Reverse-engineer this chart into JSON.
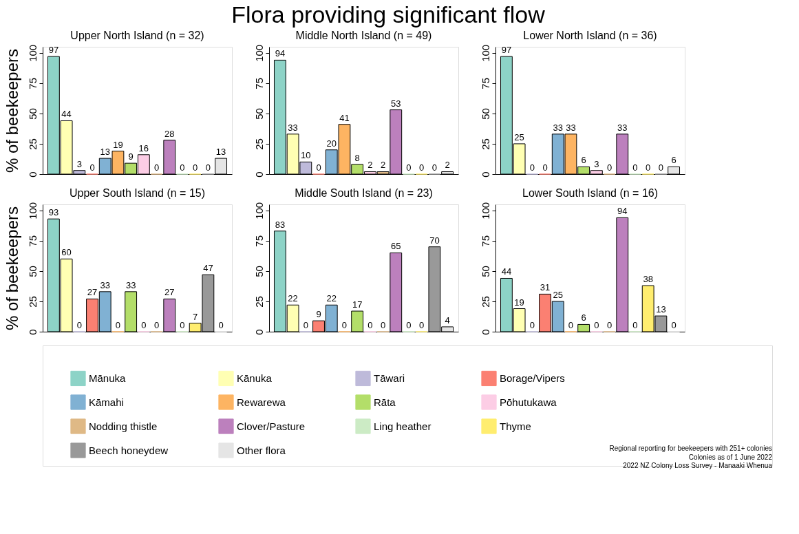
{
  "chart_data": [
    {
      "type": "bar",
      "title": "Upper North Island (n = 32)",
      "categories": [
        null
      ],
      "series": [
        {
          "name": "Mānuka",
          "color": "#8dd3c7",
          "values": [
            97
          ]
        },
        {
          "name": "Kānuka",
          "color": "#ffffb3",
          "values": [
            44
          ]
        },
        {
          "name": "Tāwari",
          "color": "#bebada",
          "values": [
            3
          ]
        },
        {
          "name": "Borage/Vipers",
          "color": "#fb8072",
          "values": [
            0
          ]
        },
        {
          "name": "Kāmahi",
          "color": "#80b1d3",
          "values": [
            13
          ]
        },
        {
          "name": "Rewarewa",
          "color": "#fdb462",
          "values": [
            19
          ]
        },
        {
          "name": "Rāta",
          "color": "#b3de69",
          "values": [
            9
          ]
        },
        {
          "name": "Pōhutukawa",
          "color": "#fccde5",
          "values": [
            16
          ]
        },
        {
          "name": "Nodding thistle",
          "color": "#dfb986",
          "values": [
            0
          ]
        },
        {
          "name": "Clover/Pasture",
          "color": "#bc80bd",
          "values": [
            28
          ]
        },
        {
          "name": "Ling heather",
          "color": "#ccebc5",
          "values": [
            0
          ]
        },
        {
          "name": "Thyme",
          "color": "#ffed6f",
          "values": [
            0
          ]
        },
        {
          "name": "Beech honeydew",
          "color": "#999999",
          "values": [
            0
          ]
        },
        {
          "name": "Other flora",
          "color": "#e5e5e5",
          "values": [
            13
          ]
        }
      ],
      "ylim": [
        0,
        105
      ],
      "yticks": [
        0,
        25,
        50,
        75,
        100
      ],
      "data_labels": true,
      "tick_labels": "y",
      "legend": "bottom"
    },
    {
      "type": "bar",
      "title": "Middle North Island (n = 49)",
      "categories": [
        null
      ],
      "series": [
        {
          "name": "Mānuka",
          "color": "#8dd3c7",
          "values": [
            94
          ]
        },
        {
          "name": "Kānuka",
          "color": "#ffffb3",
          "values": [
            33
          ]
        },
        {
          "name": "Tāwari",
          "color": "#bebada",
          "values": [
            10
          ]
        },
        {
          "name": "Borage/Vipers",
          "color": "#fb8072",
          "values": [
            0
          ]
        },
        {
          "name": "Kāmahi",
          "color": "#80b1d3",
          "values": [
            20
          ]
        },
        {
          "name": "Rewarewa",
          "color": "#fdb462",
          "values": [
            41
          ]
        },
        {
          "name": "Rāta",
          "color": "#b3de69",
          "values": [
            8
          ]
        },
        {
          "name": "Pōhutukawa",
          "color": "#fccde5",
          "values": [
            2
          ]
        },
        {
          "name": "Nodding thistle",
          "color": "#dfb986",
          "values": [
            2
          ]
        },
        {
          "name": "Clover/Pasture",
          "color": "#bc80bd",
          "values": [
            53
          ]
        },
        {
          "name": "Ling heather",
          "color": "#ccebc5",
          "values": [
            0
          ]
        },
        {
          "name": "Thyme",
          "color": "#ffed6f",
          "values": [
            0
          ]
        },
        {
          "name": "Beech honeydew",
          "color": "#999999",
          "values": [
            0
          ]
        },
        {
          "name": "Other flora",
          "color": "#e5e5e5",
          "values": [
            2
          ]
        }
      ],
      "ylim": [
        0,
        105
      ],
      "yticks": [
        0,
        25,
        50,
        75,
        100
      ],
      "data_labels": true,
      "tick_labels": "y",
      "legend": "bottom"
    },
    {
      "type": "bar",
      "title": "Lower North Island (n = 36)",
      "categories": [
        null
      ],
      "series": [
        {
          "name": "Mānuka",
          "color": "#8dd3c7",
          "values": [
            97
          ]
        },
        {
          "name": "Kānuka",
          "color": "#ffffb3",
          "values": [
            25
          ]
        },
        {
          "name": "Tāwari",
          "color": "#bebada",
          "values": [
            0
          ]
        },
        {
          "name": "Borage/Vipers",
          "color": "#fb8072",
          "values": [
            0
          ]
        },
        {
          "name": "Kāmahi",
          "color": "#80b1d3",
          "values": [
            33
          ]
        },
        {
          "name": "Rewarewa",
          "color": "#fdb462",
          "values": [
            33
          ]
        },
        {
          "name": "Rāta",
          "color": "#b3de69",
          "values": [
            6
          ]
        },
        {
          "name": "Pōhutukawa",
          "color": "#fccde5",
          "values": [
            3
          ]
        },
        {
          "name": "Nodding thistle",
          "color": "#dfb986",
          "values": [
            0
          ]
        },
        {
          "name": "Clover/Pasture",
          "color": "#bc80bd",
          "values": [
            33
          ]
        },
        {
          "name": "Ling heather",
          "color": "#ccebc5",
          "values": [
            0
          ]
        },
        {
          "name": "Thyme",
          "color": "#ffed6f",
          "values": [
            0
          ]
        },
        {
          "name": "Beech honeydew",
          "color": "#999999",
          "values": [
            0
          ]
        },
        {
          "name": "Other flora",
          "color": "#e5e5e5",
          "values": [
            6
          ]
        }
      ],
      "ylim": [
        0,
        105
      ],
      "yticks": [
        0,
        25,
        50,
        75,
        100
      ],
      "data_labels": true,
      "tick_labels": "y",
      "legend": "bottom"
    },
    {
      "type": "bar",
      "title": "Upper South Island (n = 15)",
      "categories": [
        null
      ],
      "series": [
        {
          "name": "Mānuka",
          "color": "#8dd3c7",
          "values": [
            93
          ]
        },
        {
          "name": "Kānuka",
          "color": "#ffffb3",
          "values": [
            60
          ]
        },
        {
          "name": "Tāwari",
          "color": "#bebada",
          "values": [
            0
          ]
        },
        {
          "name": "Borage/Vipers",
          "color": "#fb8072",
          "values": [
            27
          ]
        },
        {
          "name": "Kāmahi",
          "color": "#80b1d3",
          "values": [
            33
          ]
        },
        {
          "name": "Rewarewa",
          "color": "#fdb462",
          "values": [
            0
          ]
        },
        {
          "name": "Rāta",
          "color": "#b3de69",
          "values": [
            33
          ]
        },
        {
          "name": "Pōhutukawa",
          "color": "#fccde5",
          "values": [
            0
          ]
        },
        {
          "name": "Nodding thistle",
          "color": "#dfb986",
          "values": [
            0
          ]
        },
        {
          "name": "Clover/Pasture",
          "color": "#bc80bd",
          "values": [
            27
          ]
        },
        {
          "name": "Ling heather",
          "color": "#ccebc5",
          "values": [
            0
          ]
        },
        {
          "name": "Thyme",
          "color": "#ffed6f",
          "values": [
            7
          ]
        },
        {
          "name": "Beech honeydew",
          "color": "#999999",
          "values": [
            47
          ]
        },
        {
          "name": "Other flora",
          "color": "#e5e5e5",
          "values": [
            0
          ]
        }
      ],
      "ylim": [
        0,
        105
      ],
      "yticks": [
        0,
        25,
        50,
        75,
        100
      ],
      "data_labels": true,
      "tick_labels": "y",
      "legend": "bottom"
    },
    {
      "type": "bar",
      "title": "Middle South Island (n = 23)",
      "categories": [
        null
      ],
      "series": [
        {
          "name": "Mānuka",
          "color": "#8dd3c7",
          "values": [
            83
          ]
        },
        {
          "name": "Kānuka",
          "color": "#ffffb3",
          "values": [
            22
          ]
        },
        {
          "name": "Tāwari",
          "color": "#bebada",
          "values": [
            0
          ]
        },
        {
          "name": "Borage/Vipers",
          "color": "#fb8072",
          "values": [
            9
          ]
        },
        {
          "name": "Kāmahi",
          "color": "#80b1d3",
          "values": [
            22
          ]
        },
        {
          "name": "Rewarewa",
          "color": "#fdb462",
          "values": [
            0
          ]
        },
        {
          "name": "Rāta",
          "color": "#b3de69",
          "values": [
            17
          ]
        },
        {
          "name": "Pōhutukawa",
          "color": "#fccde5",
          "values": [
            0
          ]
        },
        {
          "name": "Nodding thistle",
          "color": "#dfb986",
          "values": [
            0
          ]
        },
        {
          "name": "Clover/Pasture",
          "color": "#bc80bd",
          "values": [
            65
          ]
        },
        {
          "name": "Ling heather",
          "color": "#ccebc5",
          "values": [
            0
          ]
        },
        {
          "name": "Thyme",
          "color": "#ffed6f",
          "values": [
            0
          ]
        },
        {
          "name": "Beech honeydew",
          "color": "#999999",
          "values": [
            70
          ]
        },
        {
          "name": "Other flora",
          "color": "#e5e5e5",
          "values": [
            4
          ]
        }
      ],
      "ylim": [
        0,
        105
      ],
      "yticks": [
        0,
        25,
        50,
        75,
        100
      ],
      "data_labels": true,
      "tick_labels": "y",
      "legend": "bottom"
    },
    {
      "type": "bar",
      "title": "Lower South Island (n = 16)",
      "categories": [
        null
      ],
      "series": [
        {
          "name": "Mānuka",
          "color": "#8dd3c7",
          "values": [
            44
          ]
        },
        {
          "name": "Kānuka",
          "color": "#ffffb3",
          "values": [
            19
          ]
        },
        {
          "name": "Tāwari",
          "color": "#bebada",
          "values": [
            0
          ]
        },
        {
          "name": "Borage/Vipers",
          "color": "#fb8072",
          "values": [
            31
          ]
        },
        {
          "name": "Kāmahi",
          "color": "#80b1d3",
          "values": [
            25
          ]
        },
        {
          "name": "Rewarewa",
          "color": "#fdb462",
          "values": [
            0
          ]
        },
        {
          "name": "Rāta",
          "color": "#b3de69",
          "values": [
            6
          ]
        },
        {
          "name": "Pōhutukawa",
          "color": "#fccde5",
          "values": [
            0
          ]
        },
        {
          "name": "Nodding thistle",
          "color": "#dfb986",
          "values": [
            0
          ]
        },
        {
          "name": "Clover/Pasture",
          "color": "#bc80bd",
          "values": [
            94
          ]
        },
        {
          "name": "Ling heather",
          "color": "#ccebc5",
          "values": [
            0
          ]
        },
        {
          "name": "Thyme",
          "color": "#ffed6f",
          "values": [
            38
          ]
        },
        {
          "name": "Beech honeydew",
          "color": "#999999",
          "values": [
            13
          ]
        },
        {
          "name": "Other flora",
          "color": "#e5e5e5",
          "values": [
            0
          ]
        }
      ],
      "ylim": [
        0,
        105
      ],
      "yticks": [
        0,
        25,
        50,
        75,
        100
      ],
      "data_labels": true,
      "tick_labels": "y",
      "legend": "bottom"
    },
    {
      "type": "other",
      "title": "Flora providing significant flow",
      "ylabel": "% of beekeepers",
      "annotations": [
        "Regional reporting for beekeepers with 251+ colonies",
        "Colonies as of 1 June 2022",
        "2022 NZ Colony Loss Survey - Manaaki Whenua"
      ]
    }
  ]
}
